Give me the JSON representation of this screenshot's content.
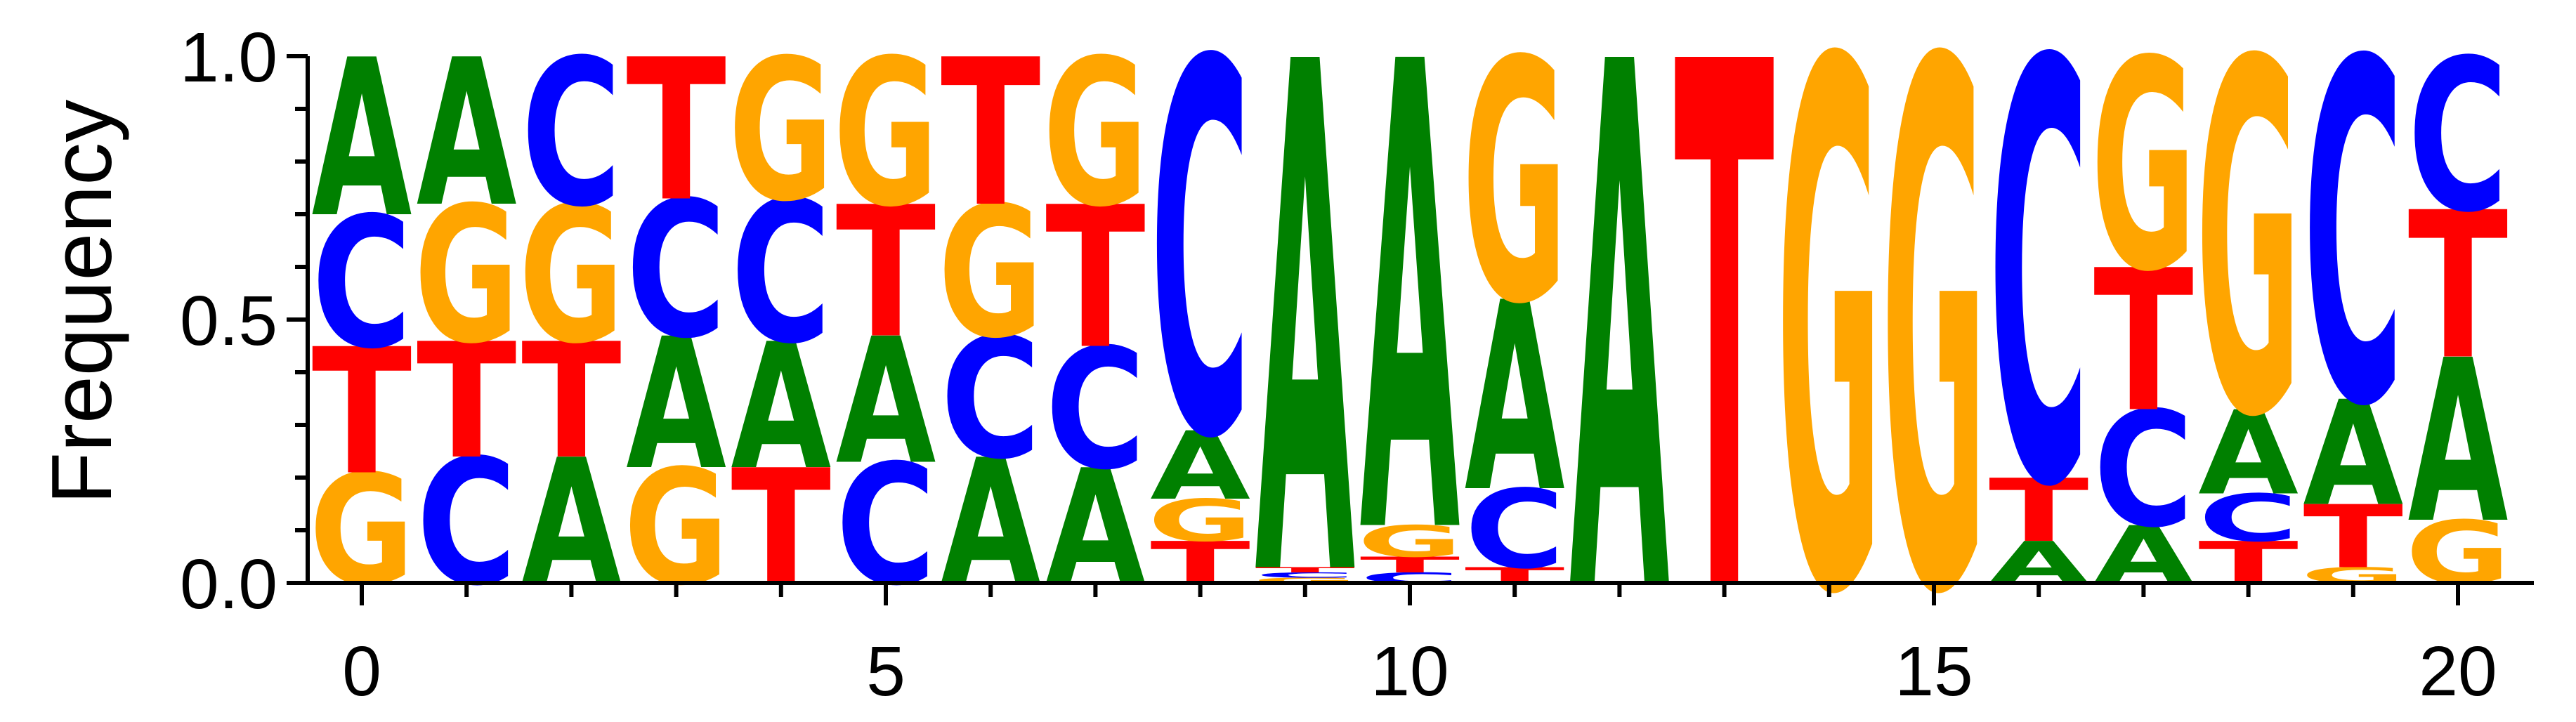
{
  "chart_data": {
    "type": "sequence-logo",
    "ylabel": "Frequency",
    "xlabel": "",
    "ylim": [
      0,
      1
    ],
    "xlim": [
      -0.5,
      20.5
    ],
    "y_ticks": [
      {
        "value": 0.0,
        "label": "0.0"
      },
      {
        "value": 0.5,
        "label": "0.5"
      },
      {
        "value": 1.0,
        "label": "1.0"
      }
    ],
    "y_minor_ticks": [
      0.1,
      0.2,
      0.3,
      0.4,
      0.6,
      0.7,
      0.8,
      0.9
    ],
    "x_ticks": [
      {
        "value": 0,
        "label": "0"
      },
      {
        "value": 5,
        "label": "5"
      },
      {
        "value": 10,
        "label": "10"
      },
      {
        "value": 15,
        "label": "15"
      },
      {
        "value": 20,
        "label": "20"
      }
    ],
    "x_minor_ticks": [
      1,
      2,
      3,
      4,
      6,
      7,
      8,
      9,
      11,
      12,
      13,
      14,
      16,
      17,
      18,
      19
    ],
    "colors": {
      "A": "#008000",
      "C": "#0000ff",
      "G": "#ffa500",
      "T": "#ff0000"
    },
    "positions": [
      {
        "pos": 0,
        "stack": [
          [
            "G",
            0.21
          ],
          [
            "T",
            0.24
          ],
          [
            "C",
            0.25
          ],
          [
            "A",
            0.3
          ]
        ]
      },
      {
        "pos": 1,
        "stack": [
          [
            "C",
            0.24
          ],
          [
            "T",
            0.22
          ],
          [
            "G",
            0.26
          ],
          [
            "A",
            0.28
          ]
        ]
      },
      {
        "pos": 2,
        "stack": [
          [
            "A",
            0.24
          ],
          [
            "T",
            0.22
          ],
          [
            "G",
            0.26
          ],
          [
            "C",
            0.28
          ]
        ]
      },
      {
        "pos": 3,
        "stack": [
          [
            "G",
            0.22
          ],
          [
            "A",
            0.25
          ],
          [
            "C",
            0.26
          ],
          [
            "T",
            0.27
          ]
        ]
      },
      {
        "pos": 4,
        "stack": [
          [
            "T",
            0.22
          ],
          [
            "A",
            0.24
          ],
          [
            "C",
            0.27
          ],
          [
            "G",
            0.27
          ]
        ]
      },
      {
        "pos": 5,
        "stack": [
          [
            "C",
            0.23
          ],
          [
            "A",
            0.24
          ],
          [
            "T",
            0.25
          ],
          [
            "G",
            0.28
          ]
        ]
      },
      {
        "pos": 6,
        "stack": [
          [
            "A",
            0.24
          ],
          [
            "C",
            0.23
          ],
          [
            "G",
            0.25
          ],
          [
            "T",
            0.28
          ]
        ]
      },
      {
        "pos": 7,
        "stack": [
          [
            "A",
            0.22
          ],
          [
            "C",
            0.23
          ],
          [
            "T",
            0.27
          ],
          [
            "G",
            0.28
          ]
        ]
      },
      {
        "pos": 8,
        "stack": [
          [
            "T",
            0.08
          ],
          [
            "G",
            0.08
          ],
          [
            "A",
            0.13
          ],
          [
            "C",
            0.71
          ]
        ]
      },
      {
        "pos": 9,
        "stack": [
          [
            "G",
            0.01
          ],
          [
            "C",
            0.01
          ],
          [
            "T",
            0.01
          ],
          [
            "A",
            0.97
          ]
        ]
      },
      {
        "pos": 10,
        "stack": [
          [
            "C",
            0.02
          ],
          [
            "T",
            0.03
          ],
          [
            "G",
            0.06
          ],
          [
            "A",
            0.89
          ]
        ]
      },
      {
        "pos": 11,
        "stack": [
          [
            "T",
            0.03
          ],
          [
            "C",
            0.15
          ],
          [
            "A",
            0.36
          ],
          [
            "G",
            0.46
          ]
        ]
      },
      {
        "pos": 12,
        "stack": [
          [
            "A",
            1.0
          ]
        ]
      },
      {
        "pos": 13,
        "stack": [
          [
            "T",
            1.0
          ]
        ]
      },
      {
        "pos": 14,
        "stack": [
          [
            "G",
            1.0
          ]
        ]
      },
      {
        "pos": 15,
        "stack": [
          [
            "G",
            1.0
          ]
        ]
      },
      {
        "pos": 16,
        "stack": [
          [
            "A",
            0.08
          ],
          [
            "T",
            0.12
          ],
          [
            "C",
            0.8
          ]
        ]
      },
      {
        "pos": 17,
        "stack": [
          [
            "A",
            0.11
          ],
          [
            "C",
            0.22
          ],
          [
            "T",
            0.27
          ],
          [
            "G",
            0.4
          ]
        ]
      },
      {
        "pos": 18,
        "stack": [
          [
            "T",
            0.08
          ],
          [
            "C",
            0.09
          ],
          [
            "A",
            0.16
          ],
          [
            "G",
            0.67
          ]
        ]
      },
      {
        "pos": 19,
        "stack": [
          [
            "G",
            0.03
          ],
          [
            "T",
            0.12
          ],
          [
            "A",
            0.2
          ],
          [
            "C",
            0.65
          ]
        ]
      },
      {
        "pos": 20,
        "stack": [
          [
            "G",
            0.12
          ],
          [
            "A",
            0.31
          ],
          [
            "T",
            0.28
          ],
          [
            "C",
            0.29
          ]
        ]
      }
    ]
  }
}
